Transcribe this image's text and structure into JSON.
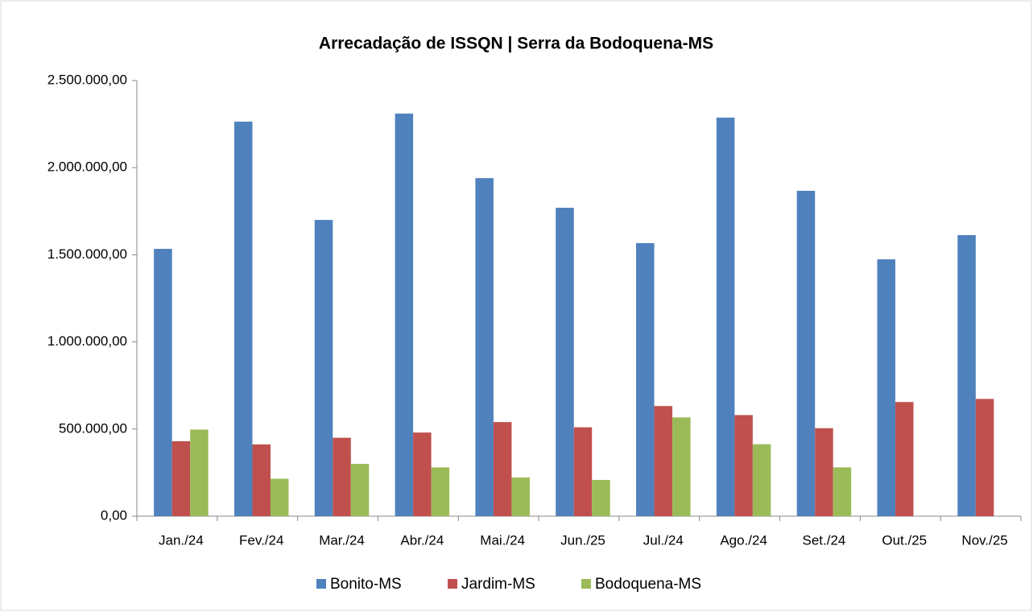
{
  "chart_data": {
    "type": "bar",
    "title": "Arrecadação de ISSQN | Serra da Bodoquena-MS",
    "categories": [
      "Jan./24",
      "Fev./24",
      "Mar./24",
      "Abr./24",
      "Mai./24",
      "Jun./25",
      "Jul./24",
      "Ago./24",
      "Set./24",
      "Out./25",
      "Nov./25"
    ],
    "series": [
      {
        "name": "Bonito-MS",
        "color": "#4f81bd",
        "values": [
          1534000,
          2264000,
          1700000,
          2310000,
          1940000,
          1770000,
          1567000,
          2287000,
          1867000,
          1474000,
          1613000
        ]
      },
      {
        "name": "Jardim-MS",
        "color": "#c0504d",
        "values": [
          430000,
          412000,
          450000,
          480000,
          540000,
          510000,
          632000,
          580000,
          505000,
          655000,
          673000
        ]
      },
      {
        "name": "Bodoquena-MS",
        "color": "#9bbb59",
        "values": [
          497000,
          215000,
          300000,
          280000,
          222000,
          208000,
          567000,
          413000,
          280000,
          null,
          null
        ]
      }
    ],
    "ylim": [
      0,
      2500000
    ],
    "yticks": [
      {
        "value": 0,
        "label": "0,00"
      },
      {
        "value": 500000,
        "label": "500.000,00"
      },
      {
        "value": 1000000,
        "label": "1.000.000,00"
      },
      {
        "value": 1500000,
        "label": "1.500.000,00"
      },
      {
        "value": 2000000,
        "label": "2.000.000,00"
      },
      {
        "value": 2500000,
        "label": "2.500.000,00"
      }
    ],
    "grid": false,
    "legend": "bottom"
  }
}
